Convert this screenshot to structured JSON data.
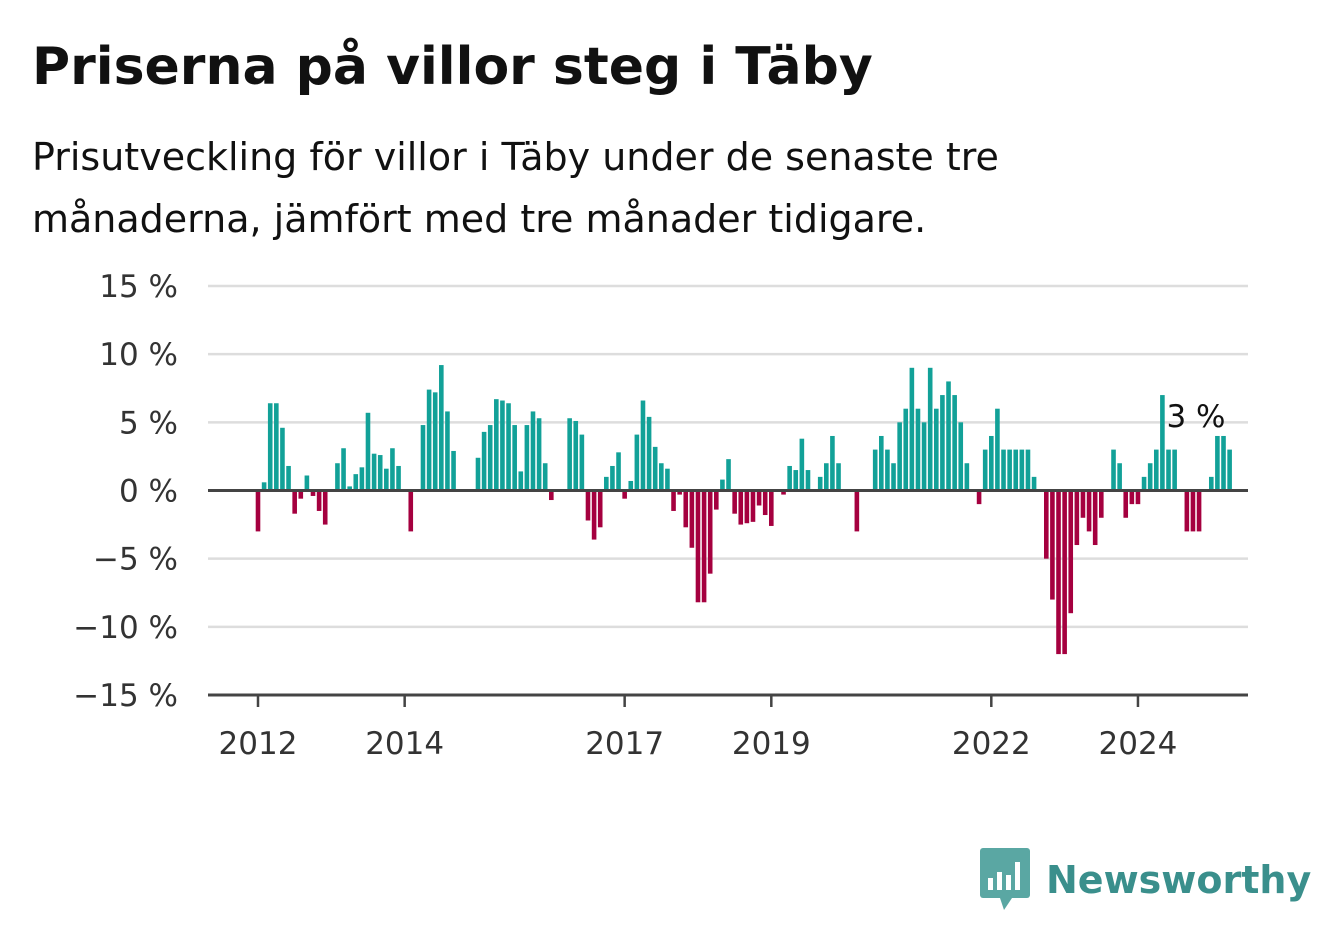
{
  "header": {
    "title": "Priserna på villor steg i Täby",
    "subtitle": "Prisutveckling för villor i Täby under de senaste tre månaderna, jämfört med tre månader tidigare."
  },
  "colors": {
    "positive": "#12a198",
    "negative": "#a5003f",
    "grid": "#dddddd",
    "axis": "#444444",
    "brand": "#3a8f8c"
  },
  "brand": {
    "name": "Newsworthy",
    "icon": "bar-chart-speech-bubble-icon"
  },
  "chart_data": {
    "type": "bar",
    "title": "Priserna på villor steg i Täby",
    "xlabel": "",
    "ylabel": "",
    "unit": "%",
    "grid": true,
    "legend": "none",
    "ylim": [
      -15,
      15
    ],
    "y_ticks": [
      15,
      10,
      5,
      0,
      -5,
      -10,
      -15
    ],
    "y_tick_labels": [
      "15 %",
      "10 %",
      "5 %",
      "0 %",
      "−5 %",
      "−10 %",
      "−15 %"
    ],
    "x_ticks": [
      2012,
      2014,
      2017,
      2019,
      2022,
      2024
    ],
    "x_tick_labels": [
      "2012",
      "2014",
      "2017",
      "2019",
      "2022",
      "2024"
    ],
    "start": "2012-01",
    "interval": "month",
    "values": [
      -3,
      0.6,
      6.4,
      6.4,
      4.6,
      1.8,
      -1.7,
      -0.6,
      1.1,
      -0.4,
      -1.5,
      -2.5,
      0,
      2,
      3.1,
      0.3,
      1.2,
      1.7,
      5.7,
      2.7,
      2.6,
      1.6,
      3.1,
      1.8,
      0,
      -3,
      0,
      4.8,
      7.4,
      7.2,
      9.2,
      5.8,
      2.9,
      0,
      0,
      0,
      2.4,
      4.3,
      4.8,
      6.7,
      6.6,
      6.4,
      4.8,
      1.4,
      4.8,
      5.8,
      5.3,
      2,
      -0.7,
      0,
      0,
      5.3,
      5.1,
      4.1,
      -2.2,
      -3.6,
      -2.7,
      1,
      1.8,
      2.8,
      -0.6,
      0.7,
      4.1,
      6.6,
      5.4,
      3.2,
      2,
      1.6,
      -1.5,
      -0.3,
      -2.7,
      -4.2,
      -8.2,
      -8.2,
      -6.1,
      -1.4,
      0.8,
      2.3,
      -1.7,
      -2.5,
      -2.4,
      -2.3,
      -1.1,
      -1.8,
      -2.6,
      0,
      -0.3,
      1.8,
      1.5,
      3.8,
      1.5,
      0,
      1,
      2,
      4,
      2,
      0,
      0,
      -3,
      0,
      0,
      3,
      4,
      3,
      2,
      5,
      6,
      9,
      6,
      5,
      9,
      6,
      7,
      8,
      7,
      5,
      2,
      0,
      -1,
      3,
      4,
      6,
      3,
      3,
      3,
      3,
      3,
      1,
      0,
      -5,
      -8,
      -12,
      -12,
      -9,
      -4,
      -2,
      -3,
      -4,
      -2,
      0,
      3,
      2,
      -2,
      -1,
      -1,
      1,
      2,
      3,
      7,
      3,
      3,
      0,
      -3,
      -3,
      -3,
      0,
      1,
      4,
      4,
      3
    ],
    "annotations": [
      {
        "label": "3 %",
        "value": 3
      }
    ]
  }
}
